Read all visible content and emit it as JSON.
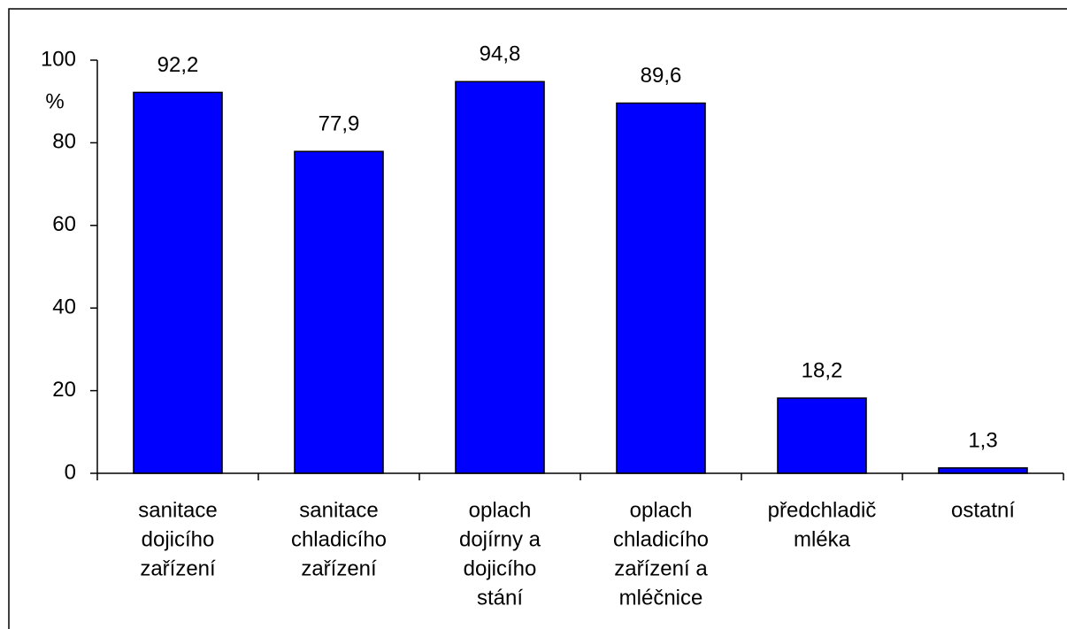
{
  "chart_data": {
    "type": "bar",
    "ylabel": "%",
    "categories": [
      [
        "sanitace",
        "dojicího",
        "zařízení"
      ],
      [
        "sanitace",
        "chladicího",
        "zařízení"
      ],
      [
        "oplach",
        "dojírny a",
        "dojicího",
        "stání"
      ],
      [
        "oplach",
        "chladicího",
        "zařízení a",
        "mléčnice"
      ],
      [
        "předchladič",
        "mléka"
      ],
      [
        "ostatní"
      ]
    ],
    "values": [
      92.2,
      77.9,
      94.8,
      89.6,
      18.2,
      1.3
    ],
    "value_labels": [
      "92,2",
      "77,9",
      "94,8",
      "89,6",
      "18,2",
      "1,3"
    ],
    "color": "#0000ff",
    "ylim": [
      0,
      100
    ],
    "yticks": [
      0,
      20,
      40,
      60,
      80,
      100
    ],
    "grid": false
  }
}
